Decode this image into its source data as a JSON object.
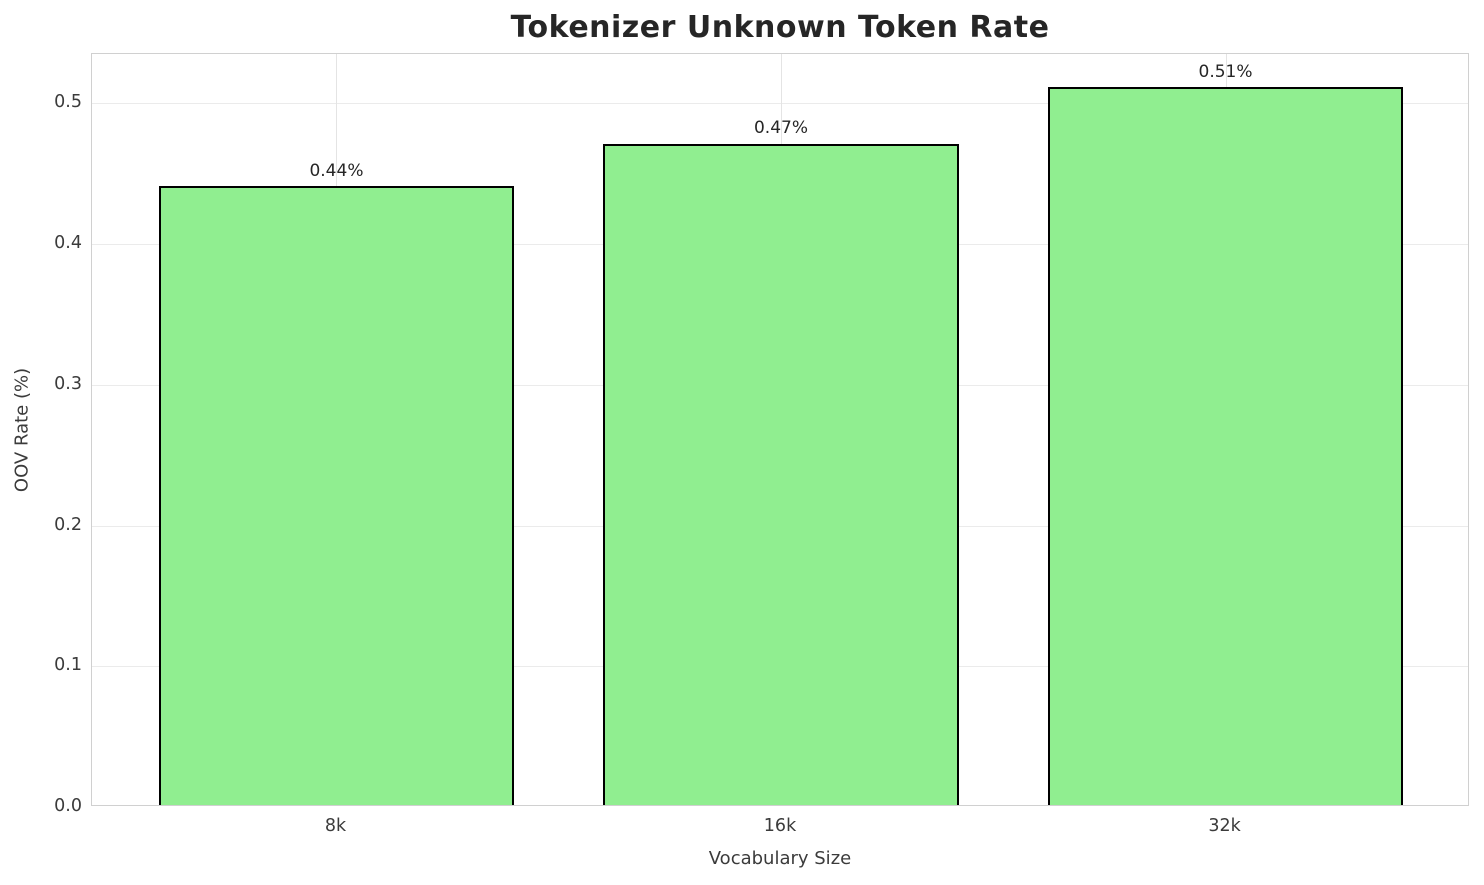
{
  "chart_data": {
    "type": "bar",
    "title": "Tokenizer Unknown Token Rate",
    "xlabel": "Vocabulary Size",
    "ylabel": "OOV Rate (%)",
    "categories": [
      "8k",
      "16k",
      "32k"
    ],
    "values": [
      0.44,
      0.47,
      0.51
    ],
    "value_labels": [
      "0.44%",
      "0.47%",
      "0.51%"
    ],
    "yticks": [
      0.0,
      0.1,
      0.2,
      0.3,
      0.4,
      0.5
    ],
    "ytick_labels": [
      "0.0",
      "0.1",
      "0.2",
      "0.3",
      "0.4",
      "0.5"
    ],
    "ylim": [
      0,
      0.535
    ],
    "xlim_units": 3.1,
    "x_offset_units": 0.55,
    "bar_width_units": 0.8,
    "grid": true,
    "legend": null,
    "colors": {
      "bar_fill": "#90EE90",
      "bar_edge": "#000000",
      "grid_h": "#ebebeb",
      "grid_v": "#e4e4e4",
      "spine": "#d0d0d0",
      "title_text": "#262626",
      "tick_text": "#3b3b3b"
    }
  }
}
